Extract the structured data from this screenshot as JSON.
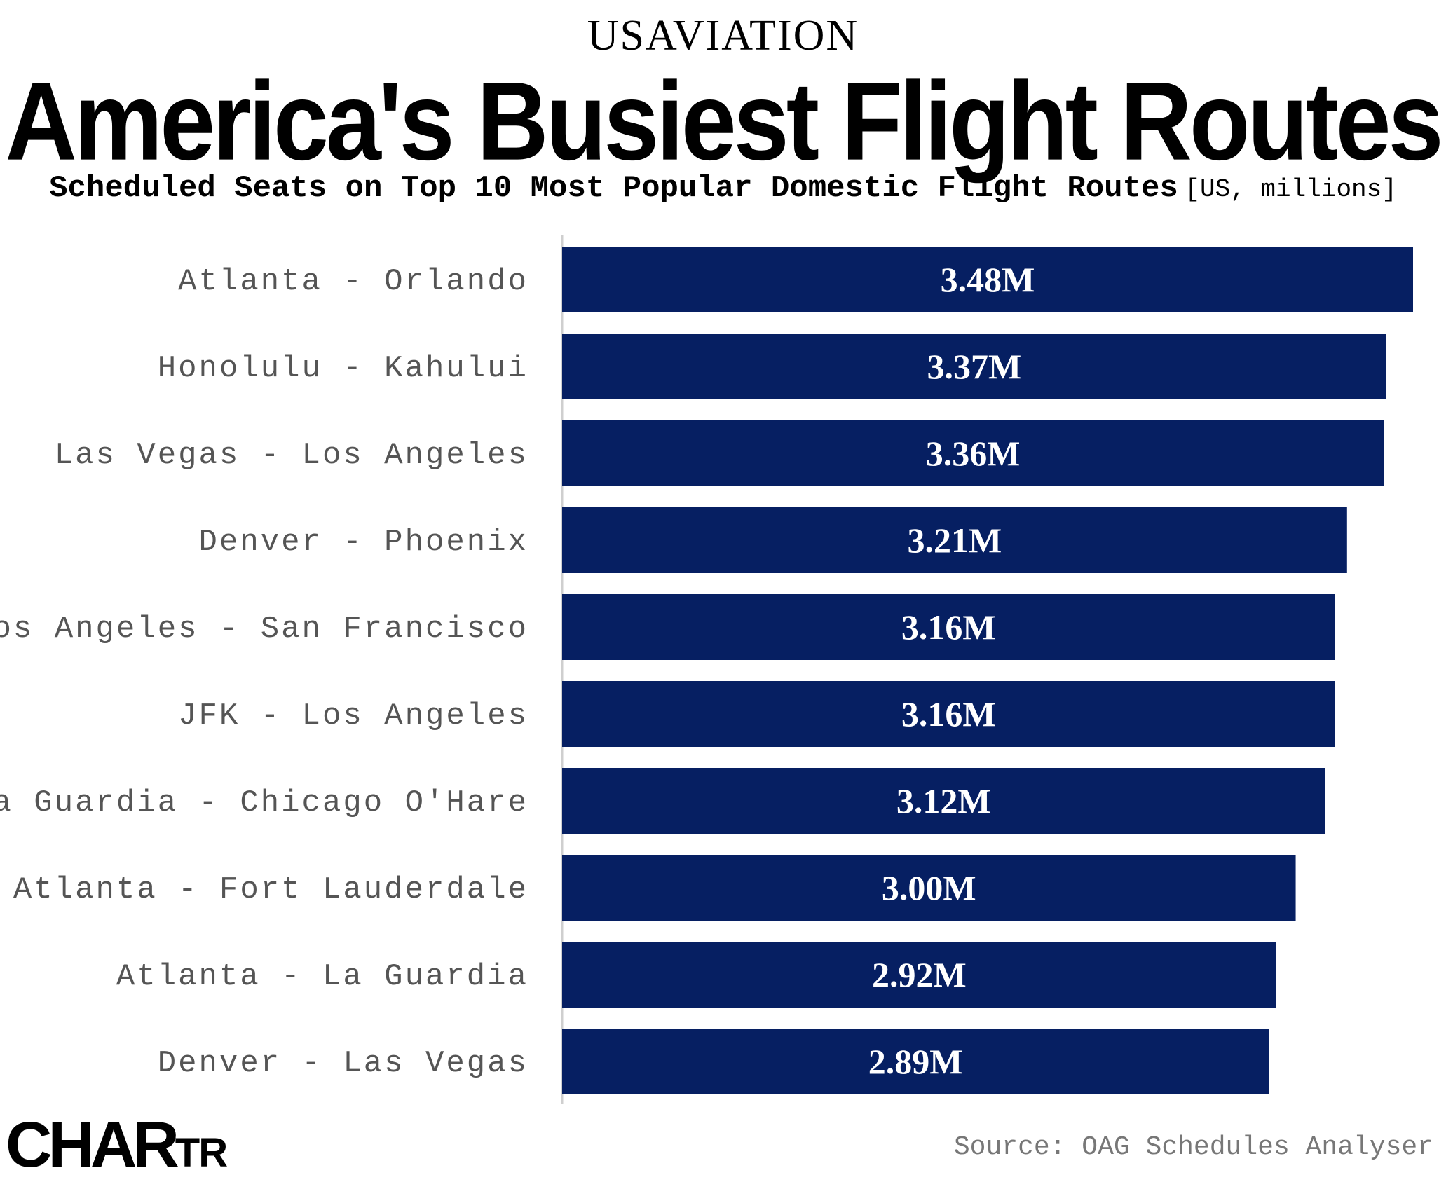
{
  "header": {
    "kicker": "USAVIATION",
    "title": "America's Busiest Flight Routes",
    "subtitle": "Scheduled Seats on Top 10 Most Popular Domestic Flight Routes",
    "unit_note": "[US, millions]"
  },
  "footer": {
    "logo_main": "CHAR",
    "logo_small": "TR",
    "source": "Source: OAG Schedules Analyser"
  },
  "colors": {
    "bar": "#061f62",
    "bar_label": "#ffffff",
    "category_label": "#555555",
    "axis_line": "#cfcfcf"
  },
  "chart_data": {
    "type": "bar",
    "orientation": "horizontal",
    "title": "America's Busiest Flight Routes",
    "xlabel": "",
    "ylabel": "",
    "xlim": [
      0,
      3.48
    ],
    "grid": false,
    "categories": [
      "Atlanta - Orlando",
      "Honolulu - Kahului",
      "Las Vegas - Los Angeles",
      "Denver - Phoenix",
      "Los Angeles - San Francisco",
      "JFK - Los Angeles",
      "La Guardia - Chicago O'Hare",
      "Atlanta - Fort Lauderdale",
      "Atlanta - La Guardia",
      "Denver - Las Vegas"
    ],
    "values": [
      3.48,
      3.37,
      3.36,
      3.21,
      3.16,
      3.16,
      3.12,
      3.0,
      2.92,
      2.89
    ],
    "data_labels": [
      "3.48M",
      "3.37M",
      "3.36M",
      "3.21M",
      "3.16M",
      "3.16M",
      "3.12M",
      "3.00M",
      "2.92M",
      "2.89M"
    ]
  }
}
